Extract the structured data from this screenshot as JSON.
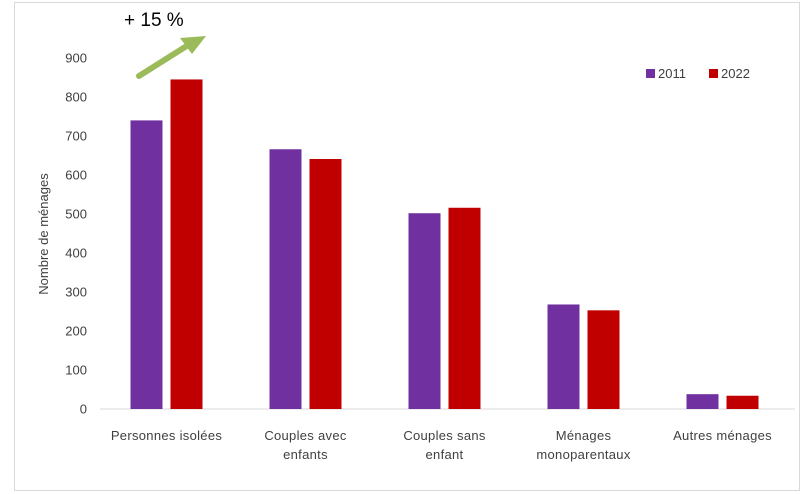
{
  "chart_data": {
    "type": "bar",
    "title": "",
    "xlabel": "",
    "ylabel": "Nombre de ménages",
    "ylim": [
      0,
      900
    ],
    "yticks": [
      0,
      100,
      200,
      300,
      400,
      500,
      600,
      700,
      800,
      900
    ],
    "grid": false,
    "legend_position": "top-right",
    "categories": [
      [
        "Personnes isolées"
      ],
      [
        "Couples avec",
        "enfants"
      ],
      [
        "Couples sans",
        "enfant"
      ],
      [
        "Ménages",
        "monoparentaux"
      ],
      [
        "Autres ménages"
      ]
    ],
    "series": [
      {
        "name": "2011",
        "color": "#7030a0",
        "values": [
          740,
          666,
          502,
          268,
          38
        ]
      },
      {
        "name": "2022",
        "color": "#c00000",
        "values": [
          845,
          641,
          516,
          253,
          34
        ]
      }
    ],
    "annotations": [
      {
        "text": "+ 15 %",
        "arrow_color": "#9bbb59"
      }
    ]
  }
}
